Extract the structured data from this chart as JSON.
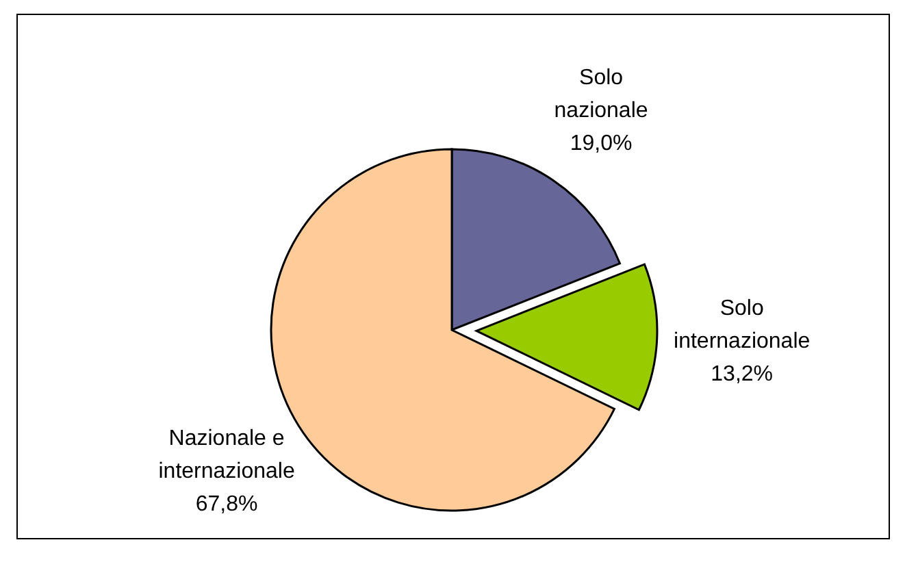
{
  "chart_data": {
    "type": "pie",
    "categories": [
      "Solo nazionale",
      "Solo internazionale",
      "Nazionale e internazionale"
    ],
    "values": [
      19.0,
      13.2,
      67.8
    ],
    "colors": [
      "#666699",
      "#99cc00",
      "#ffcc99"
    ],
    "value_labels": [
      "19,0%",
      "13,2%",
      "67,8%"
    ],
    "legend": false
  }
}
